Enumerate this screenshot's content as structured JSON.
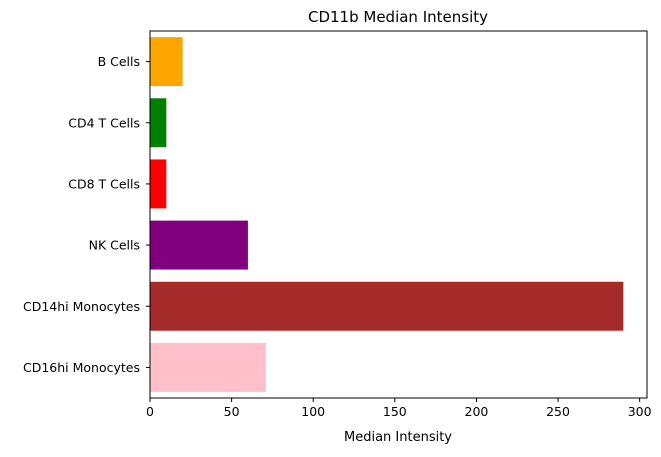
{
  "chart_data": {
    "type": "bar",
    "orientation": "horizontal",
    "title": "CD11b Median Intensity",
    "xlabel": "Median Intensity",
    "ylabel": "",
    "categories": [
      "B Cells",
      "CD4 T Cells",
      "CD8 T Cells",
      "NK Cells",
      "CD14hi Monocytes",
      "CD16hi Monocytes"
    ],
    "values": [
      20,
      10,
      10,
      60,
      290,
      71
    ],
    "colors": [
      "#ffa500",
      "#008000",
      "#ff0000",
      "#800080",
      "#a52a2a",
      "#ffc0cb"
    ],
    "xlim": [
      0,
      304.5
    ],
    "xticks": [
      0,
      50,
      100,
      150,
      200,
      250,
      300
    ],
    "grid": false,
    "legend": "none"
  }
}
